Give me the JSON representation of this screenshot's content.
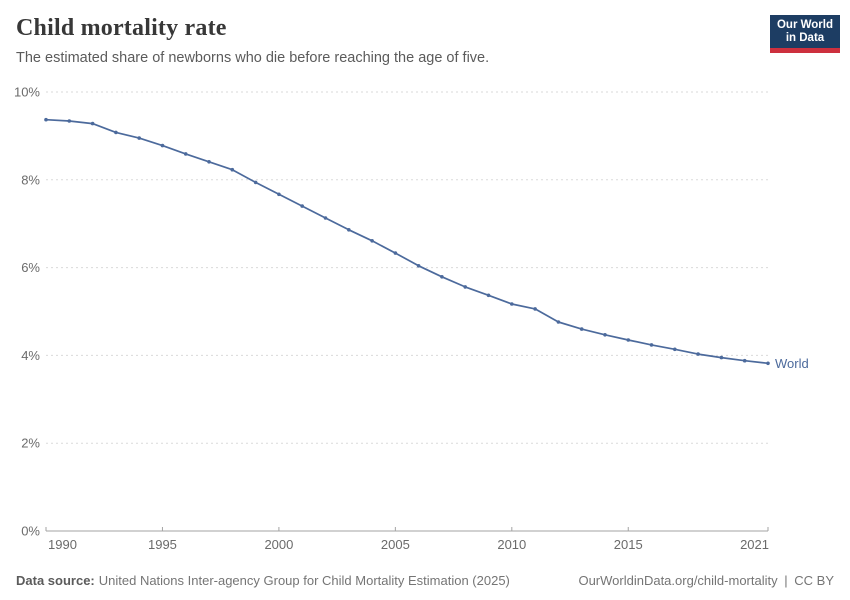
{
  "header": {
    "title": "Child mortality rate",
    "subtitle": "The estimated share of newborns who die before reaching the age of five."
  },
  "logo": {
    "line1": "Our World",
    "line2": "in Data",
    "bg_color": "#1d3d63",
    "accent_color": "#cd303e"
  },
  "chart_data": {
    "type": "line",
    "title": "Child mortality rate",
    "xlabel": "",
    "ylabel": "",
    "x": [
      1990,
      1991,
      1992,
      1993,
      1994,
      1995,
      1996,
      1997,
      1998,
      1999,
      2000,
      2001,
      2002,
      2003,
      2004,
      2005,
      2006,
      2007,
      2008,
      2009,
      2010,
      2011,
      2012,
      2013,
      2014,
      2015,
      2016,
      2017,
      2018,
      2019,
      2020,
      2021
    ],
    "series": [
      {
        "name": "World",
        "color": "#4c6a9c",
        "values": [
          9.37,
          9.34,
          9.28,
          9.08,
          8.95,
          8.78,
          8.59,
          8.41,
          8.23,
          7.94,
          7.67,
          7.4,
          7.13,
          6.86,
          6.61,
          6.33,
          6.04,
          5.79,
          5.56,
          5.37,
          5.17,
          5.06,
          4.76,
          4.6,
          4.47,
          4.35,
          4.24,
          4.14,
          4.03,
          3.95,
          3.88,
          3.82
        ]
      }
    ],
    "unit": "%",
    "ylim": [
      0,
      10
    ],
    "yticks": [
      {
        "value": 0,
        "label": "0%"
      },
      {
        "value": 2,
        "label": "2%"
      },
      {
        "value": 4,
        "label": "4%"
      },
      {
        "value": 6,
        "label": "6%"
      },
      {
        "value": 8,
        "label": "8%"
      },
      {
        "value": 10,
        "label": "10%"
      }
    ],
    "xticks": [
      {
        "value": 1990,
        "label": "1990"
      },
      {
        "value": 1995,
        "label": "1995"
      },
      {
        "value": 2000,
        "label": "2000"
      },
      {
        "value": 2005,
        "label": "2005"
      },
      {
        "value": 2010,
        "label": "2010"
      },
      {
        "value": 2015,
        "label": "2015"
      },
      {
        "value": 2021,
        "label": "2021"
      }
    ],
    "grid": "horizontal-dashed",
    "legend": "end-of-line-label",
    "colors": {
      "grid": "#dadada",
      "axis": "#a3a3a3",
      "tick_text": "#6b6b6b"
    }
  },
  "footer": {
    "source_label": "Data source:",
    "source_text": "United Nations Inter-agency Group for Child Mortality Estimation (2025)",
    "link_text": "OurWorldinData.org/child-mortality",
    "separator": "|",
    "license_text": "CC BY"
  }
}
